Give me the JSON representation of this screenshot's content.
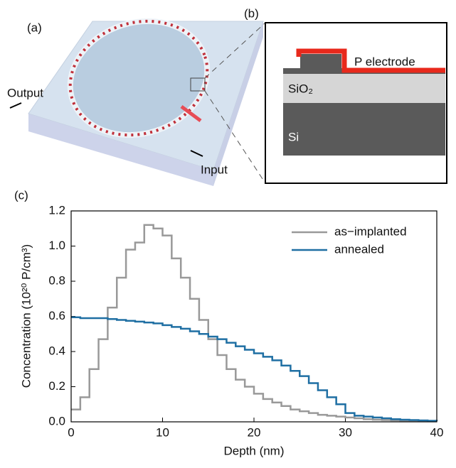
{
  "panels": {
    "a": {
      "label": "(a)",
      "output": "Output",
      "input": "Input"
    },
    "b": {
      "label": "(b)",
      "electrode": "P electrode",
      "oxide": "SiO₂",
      "substrate": "Si"
    }
  },
  "chart_data": {
    "type": "line",
    "step": true,
    "panel_label": "(c)",
    "x_label": "Depth (nm)",
    "y_label": "Concentration (10²⁰ P/cm³)",
    "x": [
      0,
      1,
      2,
      3,
      4,
      5,
      6,
      7,
      8,
      9,
      10,
      11,
      12,
      13,
      14,
      15,
      16,
      17,
      18,
      19,
      20,
      21,
      22,
      23,
      24,
      25,
      26,
      27,
      28,
      29,
      30,
      31,
      32,
      33,
      34,
      35,
      36,
      37,
      38,
      39,
      40
    ],
    "series": [
      {
        "name": "as−implanted",
        "color": "#999999",
        "values": [
          0.07,
          0.14,
          0.3,
          0.47,
          0.65,
          0.82,
          0.98,
          1.02,
          1.12,
          1.1,
          1.06,
          0.93,
          0.82,
          0.7,
          0.58,
          0.47,
          0.38,
          0.3,
          0.24,
          0.2,
          0.16,
          0.13,
          0.11,
          0.09,
          0.07,
          0.06,
          0.05,
          0.04,
          0.035,
          0.03,
          0.025,
          0.02,
          0.015,
          0.012,
          0.01,
          0.008,
          0.006,
          0.005,
          0.004,
          0.003,
          0.003
        ]
      },
      {
        "name": "annealed",
        "color": "#1f6fa3",
        "values": [
          0.595,
          0.59,
          0.59,
          0.59,
          0.585,
          0.58,
          0.575,
          0.57,
          0.565,
          0.56,
          0.55,
          0.54,
          0.53,
          0.515,
          0.5,
          0.485,
          0.47,
          0.45,
          0.43,
          0.41,
          0.39,
          0.37,
          0.35,
          0.32,
          0.29,
          0.26,
          0.22,
          0.18,
          0.14,
          0.1,
          0.05,
          0.035,
          0.03,
          0.025,
          0.02,
          0.015,
          0.012,
          0.01,
          0.008,
          0.006,
          0.005
        ]
      }
    ],
    "xlim": [
      0,
      40
    ],
    "ylim": [
      0,
      1.2
    ],
    "xticks": [
      0,
      10,
      20,
      30,
      40
    ],
    "yticks": [
      {
        "value": 0,
        "label": "0.0"
      },
      0.2,
      0.4,
      0.6,
      0.8,
      {
        "value": 1,
        "label": "1.0"
      },
      1.2
    ],
    "legend": "upper right"
  }
}
